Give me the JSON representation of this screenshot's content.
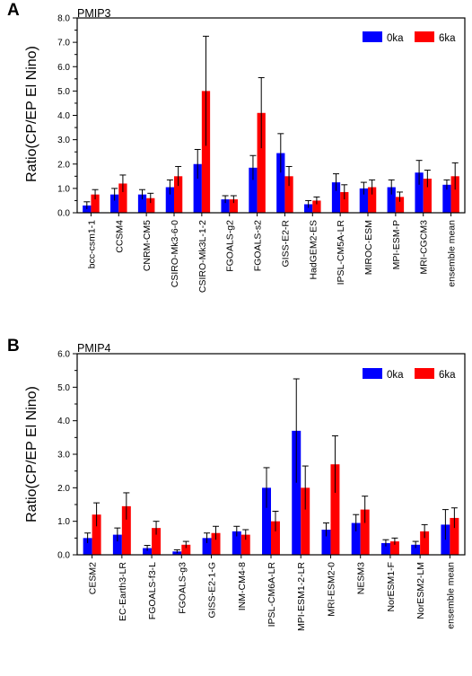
{
  "panels": [
    {
      "letter": "A",
      "title": "PMIP3"
    },
    {
      "letter": "B",
      "title": "PMIP4"
    }
  ],
  "chart_data": [
    {
      "type": "bar",
      "title": "PMIP3",
      "ylabel": "Ratio(CP/EP El Nino)",
      "ylim": [
        0,
        8
      ],
      "yticks": [
        "0.0",
        "1.0",
        "2.0",
        "3.0",
        "4.0",
        "5.0",
        "6.0",
        "7.0",
        "8.0"
      ],
      "categories": [
        "bcc-csm1-1",
        "CCSM4",
        "CNRM-CM5",
        "CSIRO-Mk3-6-0",
        "CSIRO-Mk3L-1-2",
        "FGOALS-g2",
        "FGOALS-s2",
        "GISS-E2-R",
        "HadGEM2-ES",
        "IPSL-CM5A-LR",
        "MIROC-ESM",
        "MPI-ESM-P",
        "MRI-CGCM3",
        "ensemble mean"
      ],
      "series": [
        {
          "name": "0ka",
          "color": "#0000ff",
          "values": [
            0.3,
            0.75,
            0.75,
            1.05,
            2.0,
            0.55,
            1.85,
            2.45,
            0.35,
            1.25,
            1.0,
            1.05,
            1.65,
            1.15
          ],
          "errors": [
            0.15,
            0.25,
            0.2,
            0.3,
            0.6,
            0.15,
            0.5,
            0.8,
            0.15,
            0.35,
            0.25,
            0.3,
            0.5,
            0.2
          ]
        },
        {
          "name": "6ka",
          "color": "#ff0000",
          "values": [
            0.75,
            1.2,
            0.6,
            1.5,
            5.0,
            0.55,
            4.1,
            1.5,
            0.5,
            0.85,
            1.05,
            0.65,
            1.4,
            1.5
          ],
          "errors": [
            0.2,
            0.35,
            0.2,
            0.4,
            2.25,
            0.15,
            1.45,
            0.4,
            0.15,
            0.3,
            0.3,
            0.2,
            0.35,
            0.55
          ]
        }
      ],
      "legend": "top-right"
    },
    {
      "type": "bar",
      "title": "PMIP4",
      "ylabel": "Ratio(CP/EP El Nino)",
      "ylim": [
        0,
        6
      ],
      "yticks": [
        "0.0",
        "1.0",
        "2.0",
        "3.0",
        "4.0",
        "5.0",
        "6.0"
      ],
      "categories": [
        "CESM2",
        "EC-Earth3-LR",
        "FGOALS-f3-L",
        "FGOALS-g3",
        "GISS-E2-1-G",
        "INM-CM4-8",
        "IPSL-CM6A-LR",
        "MPI-ESM1-2-LR",
        "MRI-ESM2-0",
        "NESM3",
        "NorESM1-F",
        "NorESM2-LM",
        "ensemble mean"
      ],
      "series": [
        {
          "name": "0ka",
          "color": "#0000ff",
          "values": [
            0.5,
            0.6,
            0.2,
            0.1,
            0.5,
            0.7,
            2.0,
            3.7,
            0.75,
            0.95,
            0.35,
            0.3,
            0.9
          ],
          "errors": [
            0.15,
            0.2,
            0.08,
            0.05,
            0.15,
            0.15,
            0.6,
            1.55,
            0.2,
            0.25,
            0.1,
            0.1,
            0.45
          ]
        },
        {
          "name": "6ka",
          "color": "#ff0000",
          "values": [
            1.2,
            1.45,
            0.8,
            0.3,
            0.65,
            0.6,
            1.0,
            2.0,
            2.7,
            1.35,
            0.4,
            0.7,
            1.1
          ],
          "errors": [
            0.35,
            0.4,
            0.2,
            0.1,
            0.2,
            0.15,
            0.3,
            0.65,
            0.85,
            0.4,
            0.1,
            0.2,
            0.3
          ]
        }
      ],
      "legend": "top-right"
    }
  ]
}
